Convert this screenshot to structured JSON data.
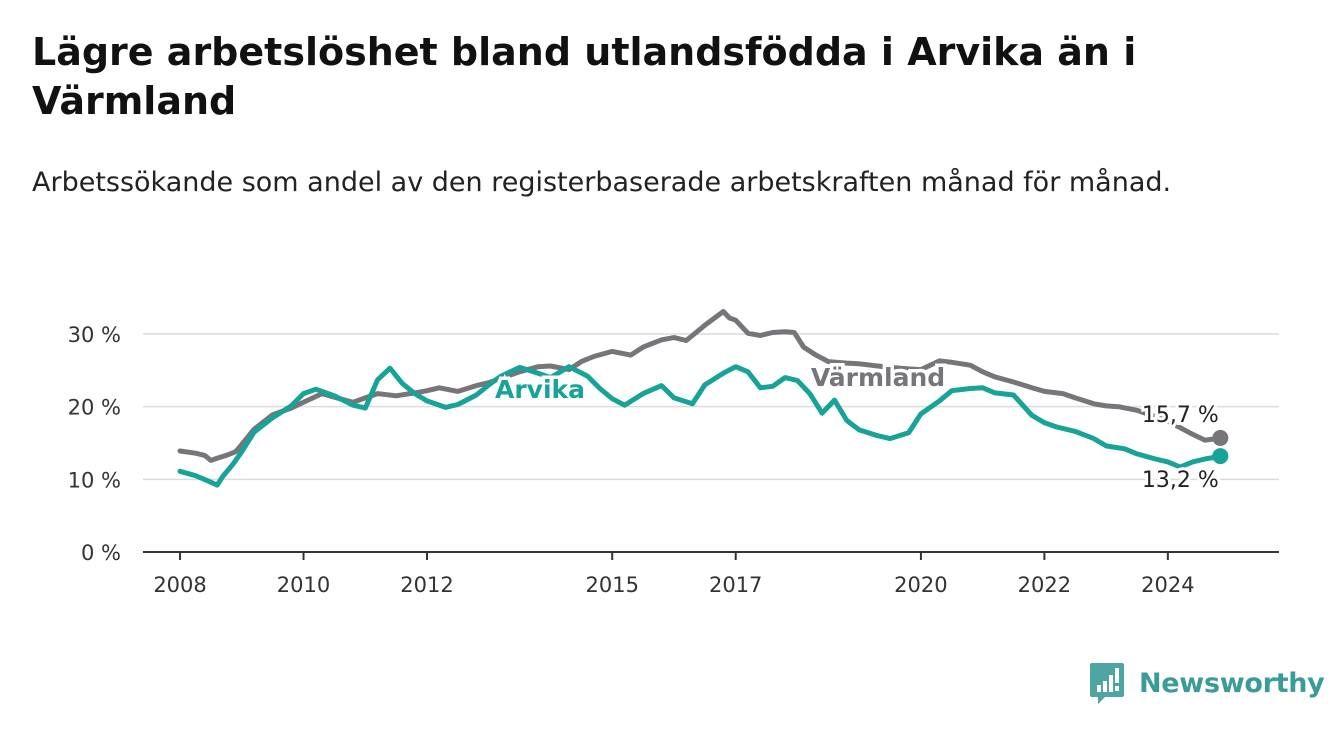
{
  "title": "Lägre arbetslöshet bland utlandsfödda i Arvika än i Värmland",
  "subtitle": "Arbetssökande som andel av den registerbaserade arbetskraften månad för månad.",
  "brand": {
    "name": "Newsworthy",
    "color": "#3a9b99"
  },
  "chart_data": {
    "type": "line",
    "xlabel": "",
    "ylabel": "",
    "ylim": [
      0,
      30
    ],
    "xlim": [
      2007.4,
      2025.8
    ],
    "grid": true,
    "y_ticks": [
      {
        "value": 0,
        "label": "0 %"
      },
      {
        "value": 10,
        "label": "10 %"
      },
      {
        "value": 20,
        "label": "20 %"
      },
      {
        "value": 30,
        "label": "30 %"
      }
    ],
    "x_ticks": [
      {
        "value": 2008,
        "label": "2008"
      },
      {
        "value": 2010,
        "label": "2010"
      },
      {
        "value": 2012,
        "label": "2012"
      },
      {
        "value": 2015,
        "label": "2015"
      },
      {
        "value": 2017,
        "label": "2017"
      },
      {
        "value": 2020,
        "label": "2020"
      },
      {
        "value": 2022,
        "label": "2022"
      },
      {
        "value": 2024,
        "label": "2024"
      }
    ],
    "series": [
      {
        "name": "Värmland",
        "color": "#76757a",
        "label_position": "inline",
        "end_label": "15,7 %",
        "x": [
          2008.0,
          2008.25,
          2008.4,
          2008.5,
          2008.6,
          2008.75,
          2008.9,
          2009.0,
          2009.2,
          2009.5,
          2009.8,
          2010.0,
          2010.3,
          2010.5,
          2010.8,
          2011.0,
          2011.2,
          2011.5,
          2011.8,
          2012.0,
          2012.2,
          2012.5,
          2012.8,
          2013.0,
          2013.3,
          2013.5,
          2013.8,
          2014.0,
          2014.3,
          2014.5,
          2014.7,
          2015.0,
          2015.3,
          2015.5,
          2015.8,
          2016.0,
          2016.2,
          2016.5,
          2016.8,
          2016.9,
          2017.0,
          2017.2,
          2017.4,
          2017.6,
          2017.8,
          2017.95,
          2018.1,
          2018.3,
          2018.5,
          2018.8,
          2019.0,
          2019.3,
          2019.5,
          2019.8,
          2020.0,
          2020.3,
          2020.5,
          2020.8,
          2021.0,
          2021.2,
          2021.5,
          2021.8,
          2022.0,
          2022.3,
          2022.5,
          2022.8,
          2023.0,
          2023.2,
          2023.5,
          2023.8,
          2024.0,
          2024.2,
          2024.4,
          2024.6,
          2024.8,
          2024.85
        ],
        "y": [
          13.9,
          13.6,
          13.3,
          12.6,
          12.9,
          13.3,
          13.8,
          14.8,
          16.9,
          18.9,
          19.8,
          20.6,
          21.8,
          21.3,
          20.6,
          21.2,
          21.8,
          21.5,
          21.9,
          22.2,
          22.6,
          22.1,
          22.9,
          23.3,
          24.2,
          24.8,
          25.5,
          25.6,
          25.1,
          26.2,
          26.9,
          27.6,
          27.1,
          28.2,
          29.2,
          29.5,
          29.1,
          31.2,
          33.1,
          32.2,
          31.9,
          30.1,
          29.8,
          30.2,
          30.3,
          30.2,
          28.2,
          27.1,
          26.2,
          26.0,
          25.9,
          25.6,
          25.4,
          25.2,
          25.1,
          26.3,
          26.1,
          25.7,
          24.8,
          24.1,
          23.4,
          22.6,
          22.1,
          21.8,
          21.2,
          20.4,
          20.1,
          20.0,
          19.5,
          18.6,
          18.0,
          17.1,
          16.2,
          15.4,
          15.6,
          15.7
        ]
      },
      {
        "name": "Arvika",
        "color": "#17a398",
        "label_position": "inline",
        "end_label": "13,2 %",
        "x": [
          2008.0,
          2008.25,
          2008.45,
          2008.6,
          2008.7,
          2008.85,
          2009.0,
          2009.2,
          2009.5,
          2009.8,
          2010.0,
          2010.2,
          2010.5,
          2010.8,
          2011.0,
          2011.2,
          2011.4,
          2011.6,
          2011.8,
          2012.0,
          2012.3,
          2012.5,
          2012.8,
          2013.0,
          2013.2,
          2013.5,
          2013.8,
          2014.0,
          2014.3,
          2014.6,
          2014.8,
          2015.0,
          2015.2,
          2015.5,
          2015.8,
          2016.0,
          2016.3,
          2016.5,
          2016.8,
          2017.0,
          2017.2,
          2017.4,
          2017.6,
          2017.8,
          2018.0,
          2018.2,
          2018.4,
          2018.6,
          2018.8,
          2019.0,
          2019.3,
          2019.5,
          2019.8,
          2020.0,
          2020.3,
          2020.5,
          2020.8,
          2021.0,
          2021.2,
          2021.5,
          2021.8,
          2022.0,
          2022.2,
          2022.5,
          2022.8,
          2023.0,
          2023.3,
          2023.5,
          2023.8,
          2024.0,
          2024.2,
          2024.4,
          2024.6,
          2024.8,
          2024.85
        ],
        "y": [
          11.1,
          10.5,
          9.8,
          9.2,
          10.5,
          12.0,
          13.8,
          16.5,
          18.5,
          20.1,
          21.8,
          22.4,
          21.5,
          20.2,
          19.8,
          23.7,
          25.3,
          23.2,
          21.8,
          20.8,
          19.9,
          20.3,
          21.6,
          23.0,
          24.2,
          25.4,
          24.6,
          24.0,
          25.5,
          24.2,
          22.5,
          21.1,
          20.2,
          21.8,
          22.9,
          21.2,
          20.4,
          23.0,
          24.6,
          25.5,
          24.8,
          22.6,
          22.8,
          24.0,
          23.6,
          21.8,
          19.1,
          20.9,
          18.1,
          16.8,
          16.0,
          15.6,
          16.4,
          19.0,
          20.8,
          22.2,
          22.5,
          22.6,
          21.9,
          21.6,
          18.8,
          17.8,
          17.2,
          16.6,
          15.6,
          14.6,
          14.2,
          13.5,
          12.8,
          12.4,
          11.7,
          12.4,
          12.8,
          13.1,
          13.2
        ]
      }
    ]
  }
}
